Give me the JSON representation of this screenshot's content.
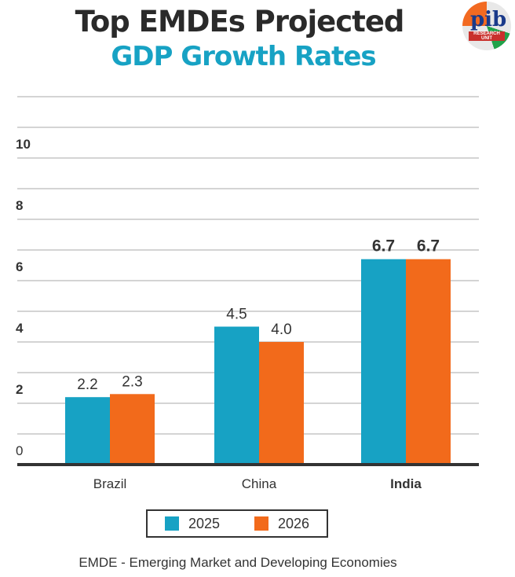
{
  "header": {
    "title_line1": "Top EMDEs Projected",
    "title_line2": "GDP Growth Rates",
    "logo_text": "pib",
    "logo_subtext": "RESEARCH UNIT"
  },
  "chart_data": {
    "type": "bar",
    "title": "Top EMDEs Projected GDP Growth Rates",
    "categories": [
      "Brazil",
      "China",
      "India"
    ],
    "series": [
      {
        "name": "2025",
        "color": "#17a2c4",
        "values": [
          2.2,
          4.5,
          6.7
        ]
      },
      {
        "name": "2026",
        "color": "#f26a1b",
        "values": [
          2.3,
          4.0,
          6.7
        ]
      }
    ],
    "yticks": [
      0,
      2,
      4,
      6,
      8,
      10
    ],
    "ylim": [
      0,
      12
    ],
    "grid": true,
    "legend": "bottom",
    "xlabel": "",
    "ylabel": ""
  },
  "footnote": "EMDE - Emerging Market and Developing Economies"
}
